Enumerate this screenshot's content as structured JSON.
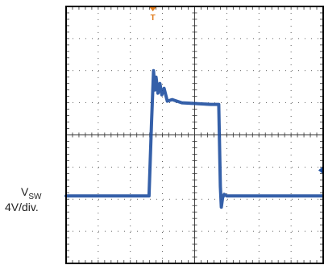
{
  "chart_data": {
    "type": "line",
    "title": "",
    "xlabel": "",
    "ylabel": "",
    "grid": true,
    "divisions": {
      "horizontal": 8,
      "vertical": 8
    },
    "xlim": [
      0,
      8
    ],
    "ylim": [
      -4,
      4
    ],
    "channel": {
      "name_main": "V",
      "name_sub": "SW",
      "scale": "4V/div.",
      "color": "#1f4fa0",
      "ground_level_div": -1.9
    },
    "trigger": {
      "label": "T",
      "color": "#e07a1a",
      "time_div": 2.7,
      "level_div": 1.1
    },
    "series": [
      {
        "values_description_free": true,
        "x": [
          0,
          2.58,
          2.66,
          2.72,
          2.76,
          2.8,
          2.86,
          2.92,
          2.98,
          3.05,
          3.15,
          3.3,
          3.6,
          4.5,
          4.75,
          4.8,
          4.83,
          4.87,
          4.92,
          5.0,
          8
        ],
        "y": [
          -1.9,
          -1.9,
          0.45,
          2.0,
          1.4,
          1.8,
          1.3,
          1.6,
          1.25,
          1.45,
          1.05,
          1.1,
          1.0,
          0.95,
          0.95,
          -1.6,
          -2.25,
          -1.95,
          -1.85,
          -1.9,
          -1.9
        ]
      }
    ],
    "colors": {
      "grid": "#333333",
      "frame": "#000000",
      "background": "#ffffff"
    }
  }
}
